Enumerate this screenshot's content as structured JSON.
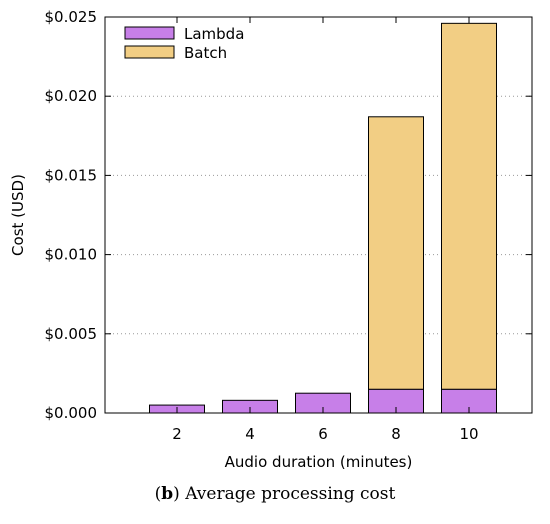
{
  "chart_data": {
    "type": "bar",
    "stacked": true,
    "categories": [
      "2",
      "4",
      "6",
      "8",
      "10"
    ],
    "series": [
      {
        "name": "Lambda",
        "color": "#c77fe8",
        "values": [
          0.0005,
          0.0008,
          0.00125,
          0.0015,
          0.0015
        ]
      },
      {
        "name": "Batch",
        "color": "#f2ce84",
        "values": [
          0,
          0,
          0,
          0.0172,
          0.0231
        ]
      }
    ],
    "xlabel": "Audio duration (minutes)",
    "ylabel": "Cost (USD)",
    "ylim": [
      0,
      0.025
    ],
    "yticks": [
      {
        "value": 0.0,
        "label": "$0.000"
      },
      {
        "value": 0.005,
        "label": "$0.005"
      },
      {
        "value": 0.01,
        "label": "$0.010"
      },
      {
        "value": 0.015,
        "label": "$0.015"
      },
      {
        "value": 0.02,
        "label": "$0.020"
      },
      {
        "value": 0.025,
        "label": "$0.025"
      }
    ],
    "grid": "horizontal-dotted",
    "legend_position": "top-left"
  },
  "caption": {
    "label": "b",
    "text": "Average processing cost"
  }
}
